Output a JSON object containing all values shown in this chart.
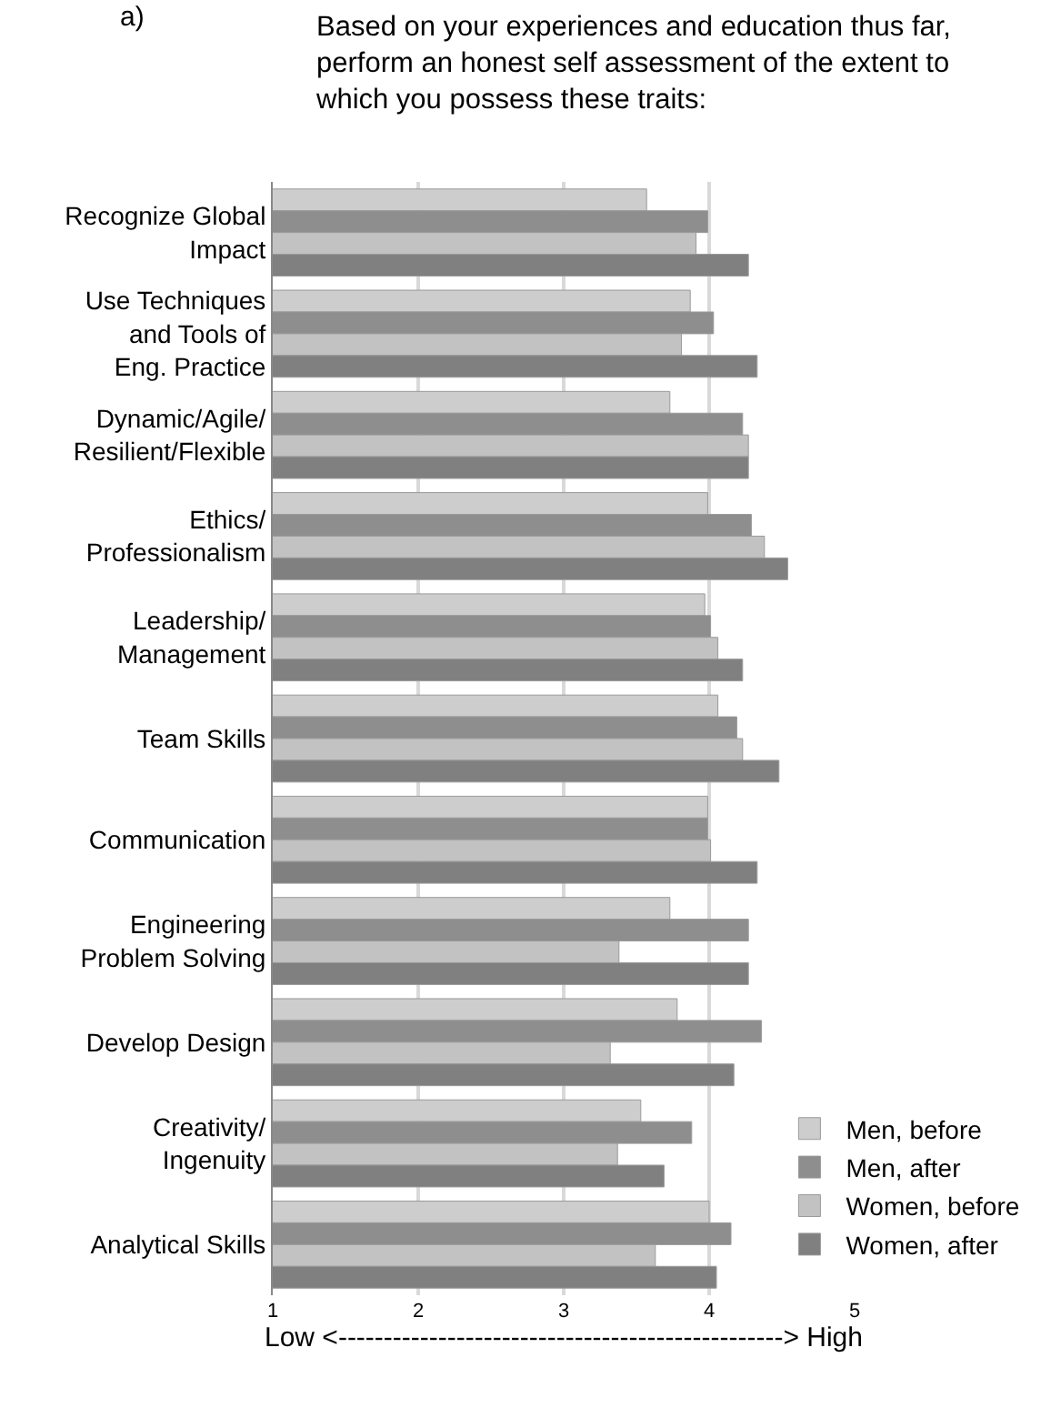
{
  "chart_data": {
    "type": "bar",
    "orientation": "horizontal",
    "title": "Based on your experiences and education thus far, perform an honest self assessment of the extent to which you possess these traits:",
    "annotations": [
      "a)"
    ],
    "xlabel": "Low <-------------------------------------------------> High",
    "categories": [
      "Recognize Global Impact",
      "Use Techniques and Tools of Eng. Practice",
      "Dynamic/Agile/Resilient/Flexible",
      "Ethics/Professionalism",
      "Leadership/Management",
      "Team Skills",
      "Communication",
      "Engineering Problem Solving",
      "Develop Design",
      "Creativity/Ingenuity",
      "Analytical Skills"
    ],
    "series": [
      {
        "name": "Men, before",
        "color": "#cdcdcd",
        "values": [
          3.57,
          3.87,
          3.73,
          3.99,
          3.97,
          4.06,
          3.99,
          3.73,
          3.78,
          3.53,
          4.0
        ]
      },
      {
        "name": "Men, after",
        "color": "#8e8e8e",
        "values": [
          3.99,
          4.03,
          4.23,
          4.29,
          4.01,
          4.19,
          3.99,
          4.27,
          4.36,
          3.88,
          4.15
        ]
      },
      {
        "name": "Women, before",
        "color": "#c2c2c2",
        "values": [
          3.91,
          3.81,
          4.27,
          4.38,
          4.06,
          4.23,
          4.01,
          3.38,
          3.32,
          3.37,
          3.63
        ]
      },
      {
        "name": "Women, after",
        "color": "#808080",
        "values": [
          4.27,
          4.33,
          4.27,
          4.54,
          4.23,
          4.48,
          4.33,
          4.27,
          4.17,
          3.69,
          4.05
        ]
      }
    ],
    "xlim": [
      1,
      5
    ],
    "xticks": [
      1,
      2,
      3,
      4,
      5
    ],
    "grid": "x",
    "legend": "bottom right"
  }
}
